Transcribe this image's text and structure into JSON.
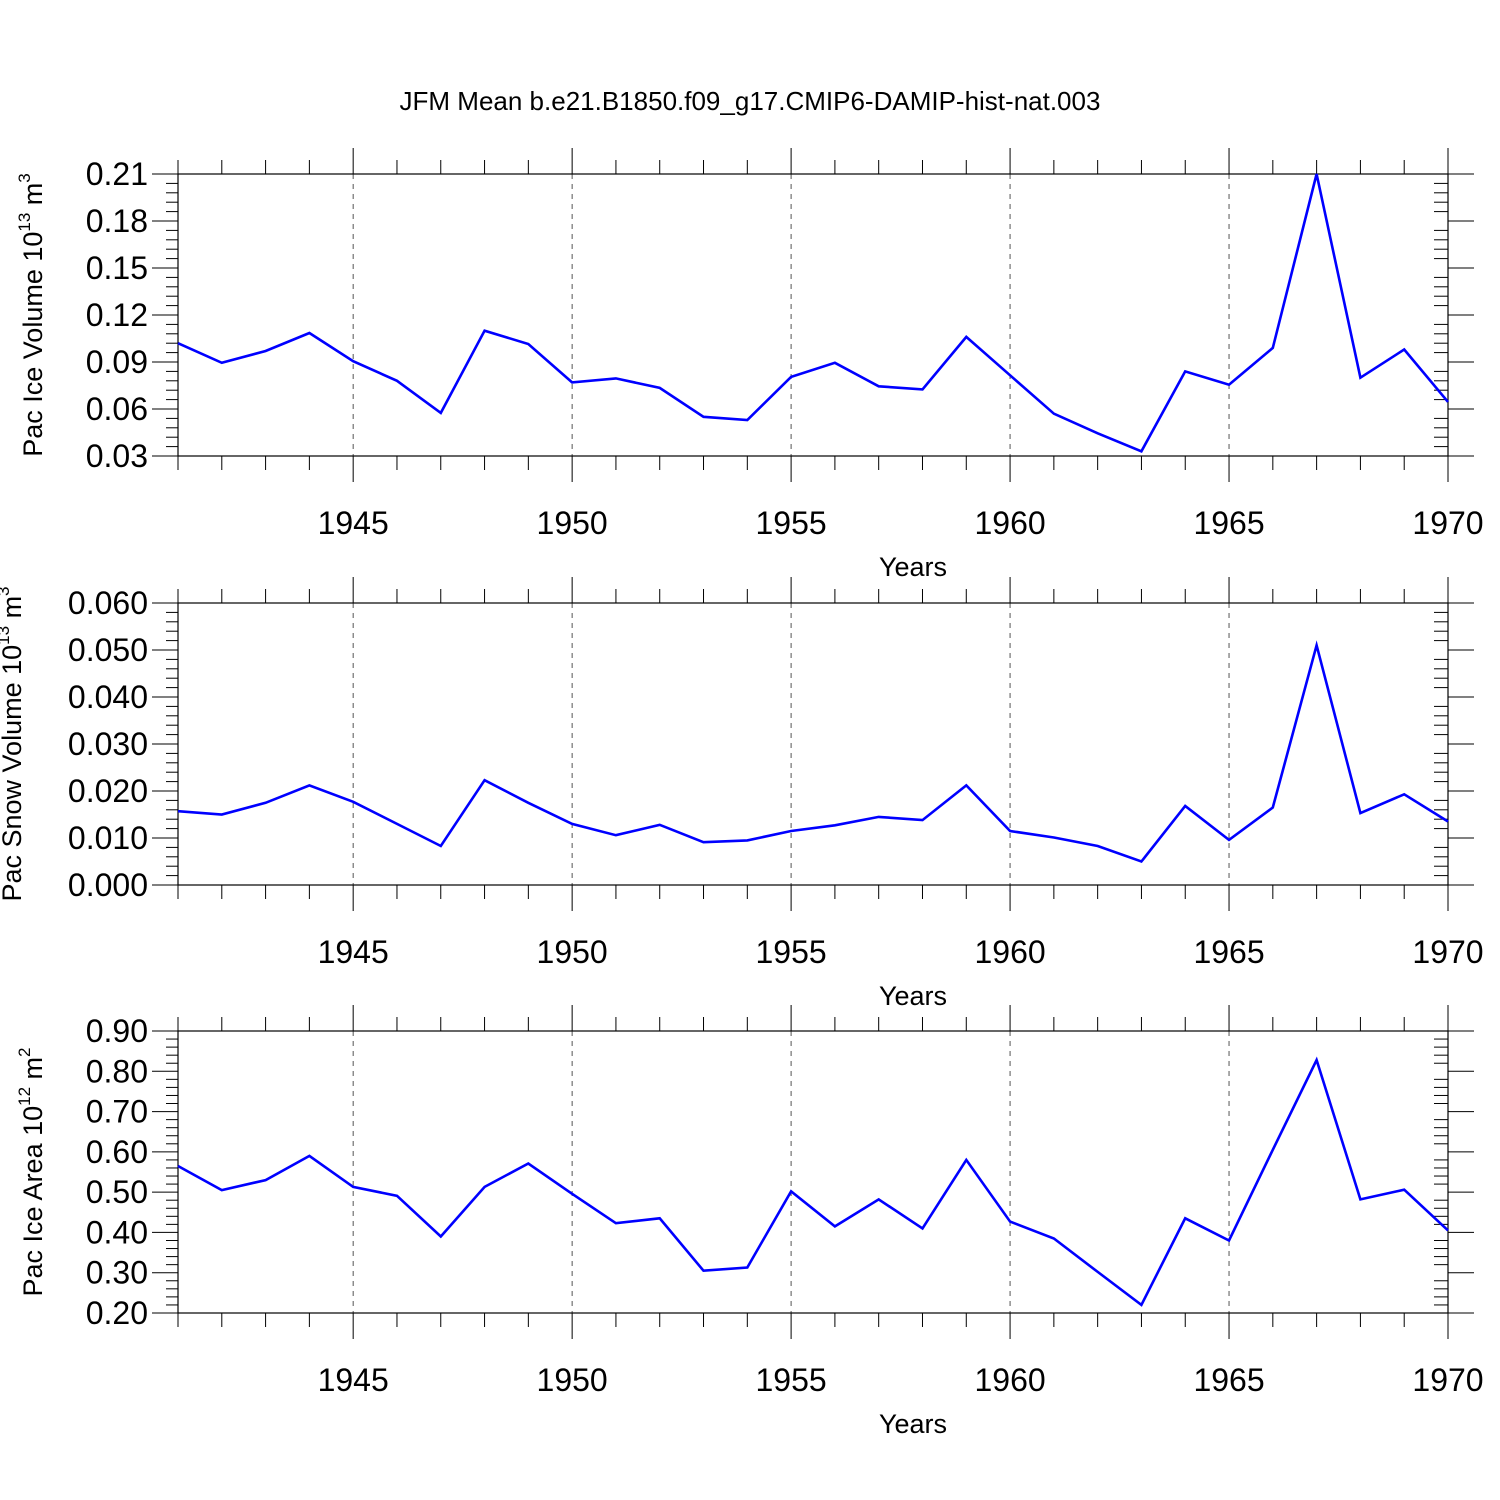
{
  "figure": {
    "title": "JFM Mean b.e21.B1850.f09_g17.CMIP6-DAMIP-hist-nat.003",
    "line_color": "#0000ff"
  },
  "chart_data": [
    {
      "type": "line",
      "xlabel": "Years",
      "ylabel": {
        "text": "Pac Ice Volume 10",
        "sup": "13",
        "unit": " m",
        "unit_sup": "3"
      },
      "xlim": [
        1941,
        1970
      ],
      "ylim": [
        0.03,
        0.21
      ],
      "x_tick_values": [
        1945,
        1950,
        1955,
        1960,
        1965,
        1970
      ],
      "x_tick_labels": [
        "1945",
        "1950",
        "1955",
        "1960",
        "1965",
        "1970"
      ],
      "y_tick_values": [
        0.03,
        0.06,
        0.09,
        0.12,
        0.15,
        0.18,
        0.21
      ],
      "y_tick_labels": [
        "0.03",
        "0.06",
        "0.09",
        "0.12",
        "0.15",
        "0.18",
        "0.21"
      ],
      "grid": "vertical dashed at major x ticks",
      "x": [
        1941,
        1942,
        1943,
        1944,
        1945,
        1946,
        1947,
        1948,
        1949,
        1950,
        1951,
        1952,
        1953,
        1954,
        1955,
        1956,
        1957,
        1958,
        1959,
        1960,
        1961,
        1962,
        1963,
        1964,
        1965,
        1966,
        1967,
        1968,
        1969,
        1970
      ],
      "series": [
        {
          "values": [
            0.102,
            0.0895,
            0.097,
            0.1085,
            0.0905,
            0.078,
            0.0575,
            0.11,
            0.1015,
            0.077,
            0.0795,
            0.0735,
            0.055,
            0.053,
            0.0805,
            0.0895,
            0.0745,
            0.0725,
            0.106,
            0.0815,
            0.057,
            0.0445,
            0.033,
            0.084,
            0.0755,
            0.099,
            0.21,
            0.08,
            0.098,
            0.0645
          ]
        }
      ]
    },
    {
      "type": "line",
      "xlabel": "Years",
      "ylabel": {
        "text": "Pac Snow Volume 10",
        "sup": "13",
        "unit": " m",
        "unit_sup": "3"
      },
      "xlim": [
        1941,
        1970
      ],
      "ylim": [
        0.0,
        0.06
      ],
      "x_tick_values": [
        1945,
        1950,
        1955,
        1960,
        1965,
        1970
      ],
      "x_tick_labels": [
        "1945",
        "1950",
        "1955",
        "1960",
        "1965",
        "1970"
      ],
      "y_tick_values": [
        0.0,
        0.01,
        0.02,
        0.03,
        0.04,
        0.05,
        0.06
      ],
      "y_tick_labels": [
        "0.000",
        "0.010",
        "0.020",
        "0.030",
        "0.040",
        "0.050",
        "0.060"
      ],
      "grid": "vertical dashed at major x ticks",
      "x": [
        1941,
        1942,
        1943,
        1944,
        1945,
        1946,
        1947,
        1948,
        1949,
        1950,
        1951,
        1952,
        1953,
        1954,
        1955,
        1956,
        1957,
        1958,
        1959,
        1960,
        1961,
        1962,
        1963,
        1964,
        1965,
        1966,
        1967,
        1968,
        1969,
        1970
      ],
      "series": [
        {
          "values": [
            0.0157,
            0.015,
            0.0175,
            0.0212,
            0.0177,
            0.013,
            0.0083,
            0.0223,
            0.0175,
            0.013,
            0.0106,
            0.0128,
            0.0091,
            0.0095,
            0.0115,
            0.0127,
            0.0145,
            0.0138,
            0.0212,
            0.0115,
            0.0101,
            0.0083,
            0.005,
            0.0168,
            0.0096,
            0.0165,
            0.051,
            0.0153,
            0.0193,
            0.0135
          ]
        }
      ]
    },
    {
      "type": "line",
      "xlabel": "Years",
      "ylabel": {
        "text": "Pac Ice Area 10",
        "sup": "12",
        "unit": " m",
        "unit_sup": "2"
      },
      "xlim": [
        1941,
        1970
      ],
      "ylim": [
        0.2,
        0.9
      ],
      "x_tick_values": [
        1945,
        1950,
        1955,
        1960,
        1965,
        1970
      ],
      "x_tick_labels": [
        "1945",
        "1950",
        "1955",
        "1960",
        "1965",
        "1970"
      ],
      "y_tick_values": [
        0.2,
        0.3,
        0.4,
        0.5,
        0.6,
        0.7,
        0.8,
        0.9
      ],
      "y_tick_labels": [
        "0.20",
        "0.30",
        "0.40",
        "0.50",
        "0.60",
        "0.70",
        "0.80",
        "0.90"
      ],
      "grid": "vertical dashed at major x ticks",
      "x": [
        1941,
        1942,
        1943,
        1944,
        1945,
        1946,
        1947,
        1948,
        1949,
        1950,
        1951,
        1952,
        1953,
        1954,
        1955,
        1956,
        1957,
        1958,
        1959,
        1960,
        1961,
        1962,
        1963,
        1964,
        1965,
        1966,
        1967,
        1968,
        1969,
        1970
      ],
      "series": [
        {
          "values": [
            0.565,
            0.505,
            0.53,
            0.59,
            0.513,
            0.491,
            0.39,
            0.513,
            0.571,
            0.496,
            0.423,
            0.435,
            0.305,
            0.313,
            0.502,
            0.415,
            0.482,
            0.41,
            0.58,
            0.427,
            0.385,
            0.302,
            0.22,
            0.435,
            0.38,
            0.605,
            0.828,
            0.482,
            0.506,
            0.405
          ]
        }
      ]
    }
  ]
}
